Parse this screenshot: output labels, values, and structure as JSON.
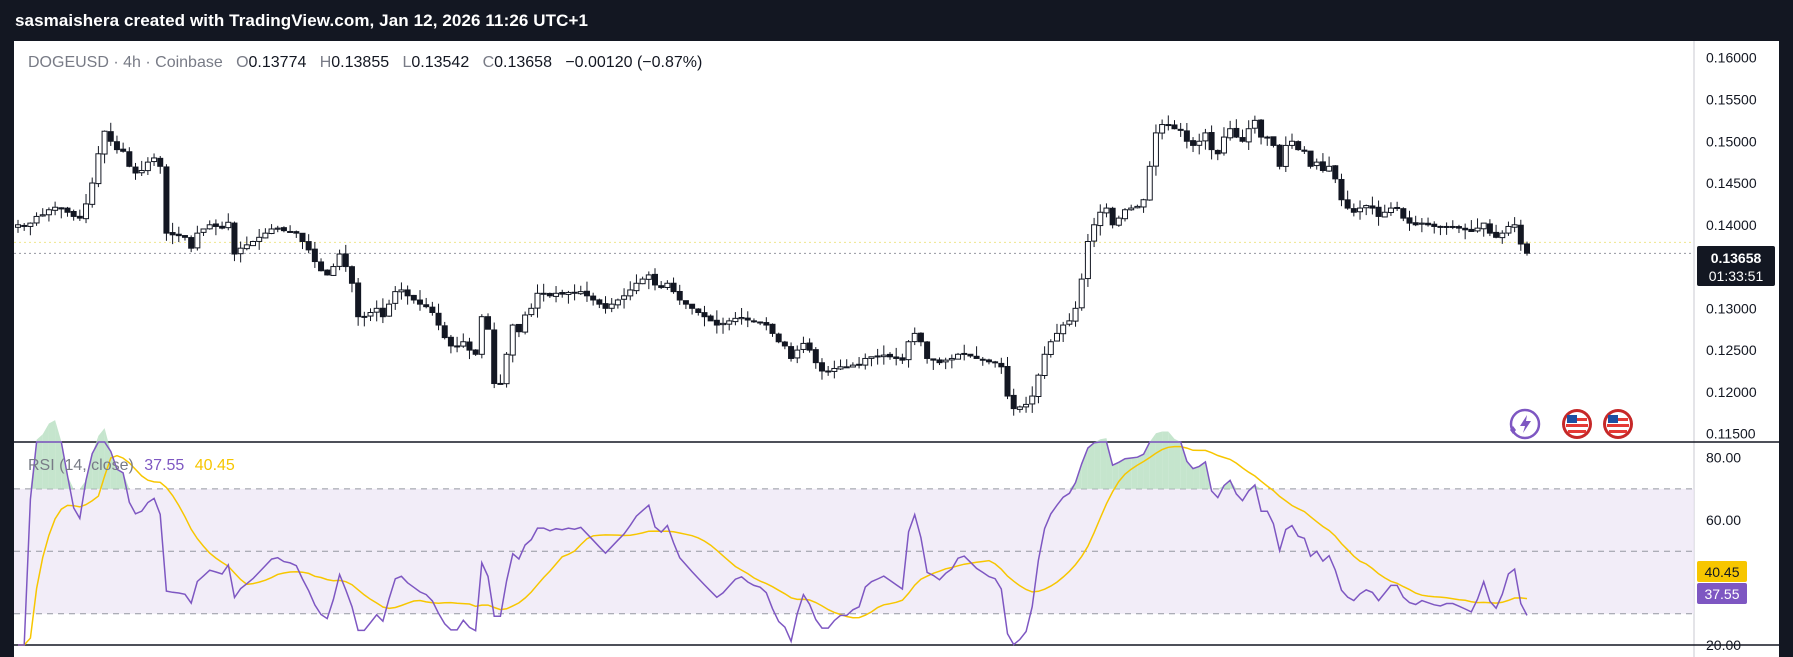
{
  "header": {
    "title": "sasmaishera created with TradingView.com, Jan 12, 2026 11:26 UTC+1"
  },
  "legend": {
    "symbol": "DOGEUSD · 4h · Coinbase",
    "o_label": "O",
    "o_value": "0.13774",
    "h_label": "H",
    "h_value": "0.13855",
    "l_label": "L",
    "l_value": "0.13542",
    "c_label": "C",
    "c_value": "0.13658",
    "change": "−0.00120 (−0.87%)"
  },
  "price_badge": {
    "price": "0.13658",
    "countdown": "01:33:51",
    "color": "#131722"
  },
  "rsi_legend": {
    "name": "RSI (14, close)",
    "rsi_value": "37.55",
    "ma_value": "40.45"
  },
  "rsi_badges": {
    "ma": "40.45",
    "rsi": "37.55"
  },
  "colors": {
    "rsi_line": "#7e57c2",
    "rsi_ma": "#f7c600",
    "rsi_band": "#ede7f6",
    "candle": "#131722",
    "background": "#ffffff",
    "header": "#131722"
  },
  "icons": [
    "lightning-icon",
    "us-flag-icon",
    "us-flag-icon"
  ],
  "chart_data": [
    {
      "type": "candlestick",
      "symbol": "DOGEUSD",
      "interval": "4h",
      "ylim": [
        0.114,
        0.162
      ],
      "y_ticks": [
        "0.16000",
        "0.15500",
        "0.15000",
        "0.14500",
        "0.14000",
        "0.13500",
        "0.13000",
        "0.12500",
        "0.12000",
        "0.11500"
      ],
      "last_price": 0.13658,
      "close_series": [
        0.14,
        0.1398,
        0.1402,
        0.141,
        0.1412,
        0.1418,
        0.1421,
        0.1419,
        0.1415,
        0.141,
        0.1408,
        0.1425,
        0.145,
        0.1485,
        0.1512,
        0.15,
        0.149,
        0.1488,
        0.147,
        0.1462,
        0.1465,
        0.1475,
        0.148,
        0.147,
        0.139,
        0.1388,
        0.1387,
        0.1385,
        0.1372,
        0.139,
        0.1395,
        0.14,
        0.1398,
        0.1396,
        0.1403,
        0.1365,
        0.1372,
        0.1376,
        0.138,
        0.1385,
        0.139,
        0.1395,
        0.1396,
        0.1393,
        0.1392,
        0.139,
        0.138,
        0.137,
        0.1356,
        0.1345,
        0.134,
        0.135,
        0.1365,
        0.135,
        0.133,
        0.129,
        0.129,
        0.1295,
        0.13,
        0.129,
        0.1305,
        0.132,
        0.1322,
        0.1315,
        0.131,
        0.1305,
        0.1302,
        0.1295,
        0.128,
        0.1265,
        0.1255,
        0.1255,
        0.126,
        0.125,
        0.1245,
        0.129,
        0.1275,
        0.121,
        0.121,
        0.1245,
        0.128,
        0.1272,
        0.1292,
        0.13,
        0.1318,
        0.1318,
        0.1315,
        0.1318,
        0.1317,
        0.1319,
        0.1318,
        0.132,
        0.1315,
        0.131,
        0.1305,
        0.13,
        0.1305,
        0.131,
        0.1315,
        0.1322,
        0.133,
        0.1335,
        0.134,
        0.1328,
        0.1325,
        0.133,
        0.132,
        0.131,
        0.1305,
        0.13,
        0.1295,
        0.129,
        0.1285,
        0.128,
        0.1282,
        0.1285,
        0.1288,
        0.1289,
        0.1286,
        0.1284,
        0.1283,
        0.128,
        0.127,
        0.126,
        0.1255,
        0.124,
        0.125,
        0.1258,
        0.125,
        0.1235,
        0.1225,
        0.1225,
        0.1228,
        0.123,
        0.123,
        0.1232,
        0.1233,
        0.124,
        0.1242,
        0.1243,
        0.1244,
        0.1242,
        0.124,
        0.1238,
        0.126,
        0.127,
        0.126,
        0.124,
        0.1238,
        0.1235,
        0.1238,
        0.124,
        0.1245,
        0.1246,
        0.1243,
        0.124,
        0.1238,
        0.1236,
        0.1235,
        0.123,
        0.1195,
        0.118,
        0.1182,
        0.1185,
        0.1195,
        0.122,
        0.1245,
        0.126,
        0.127,
        0.128,
        0.1285,
        0.13,
        0.1335,
        0.138,
        0.14,
        0.1415,
        0.142,
        0.14,
        0.1408,
        0.1418,
        0.142,
        0.1422,
        0.143,
        0.147,
        0.151,
        0.152,
        0.152,
        0.1515,
        0.1513,
        0.15,
        0.1495,
        0.15,
        0.151,
        0.149,
        0.1485,
        0.1505,
        0.1515,
        0.1505,
        0.15,
        0.1515,
        0.1525,
        0.1505,
        0.1505,
        0.1495,
        0.147,
        0.1495,
        0.15,
        0.149,
        0.1488,
        0.147,
        0.1475,
        0.1465,
        0.147,
        0.1455,
        0.143,
        0.142,
        0.1415,
        0.142,
        0.1423,
        0.142,
        0.141,
        0.1415,
        0.142,
        0.142,
        0.1408,
        0.1402,
        0.14,
        0.1402,
        0.14,
        0.1398,
        0.1397,
        0.1398,
        0.1398,
        0.1396,
        0.1394,
        0.1392,
        0.1396,
        0.1402,
        0.139,
        0.1385,
        0.139,
        0.1398,
        0.14,
        0.1377,
        0.1366
      ],
      "rsi_ylim": [
        20,
        85
      ],
      "rsi_ticks": [
        "80.00",
        "60.00",
        "20.00"
      ],
      "rsi_band": [
        30,
        70
      ],
      "rsi_mid": 50,
      "rsi_last": 37.55,
      "rsi_ma_last": 40.45
    }
  ]
}
